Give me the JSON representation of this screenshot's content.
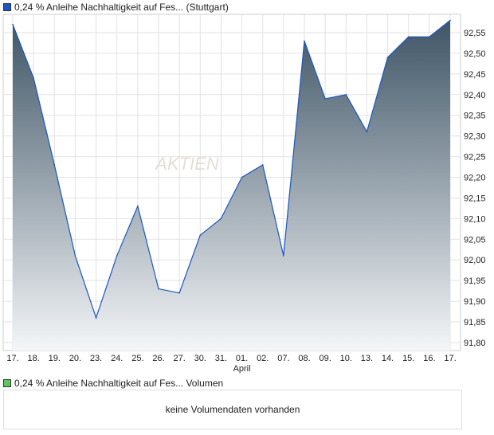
{
  "legend_main": "0,24 % Anleihe Nachhaltigkeit auf Fes... (Stuttgart)",
  "legend_volume": "0,24 % Anleihe Nachhaltigkeit auf Fes... Volumen",
  "volume_message": "keine Volumendaten vorhanden",
  "watermark": "AKTIEN CHECK",
  "colors": {
    "line": "#1a56c4",
    "fill_top": "#3f5566",
    "fill_bottom": "#f4f6f8",
    "main_swatch": "#1a56c4",
    "volume_swatch": "#5cc85c"
  },
  "chart_data": {
    "type": "area",
    "categories": [
      "17.",
      "18.",
      "19.",
      "20.",
      "23.",
      "24.",
      "25.",
      "26.",
      "27.",
      "30.",
      "31.",
      "01.",
      "02.",
      "07.",
      "08.",
      "09.",
      "10.",
      "13.",
      "14.",
      "15.",
      "16.",
      "17."
    ],
    "month_label": "April",
    "values": [
      92.57,
      92.44,
      92.23,
      92.01,
      91.86,
      92.01,
      92.13,
      91.93,
      91.92,
      92.06,
      92.1,
      92.2,
      92.23,
      92.01,
      92.53,
      92.39,
      92.4,
      92.31,
      92.49,
      92.54,
      92.54,
      92.58
    ],
    "yticks": [
      "92,55",
      "92,50",
      "92,45",
      "92,40",
      "92,35",
      "92,30",
      "92,25",
      "92,20",
      "92,15",
      "92,10",
      "92,05",
      "92,00",
      "91,95",
      "91,90",
      "91,85",
      "91,80"
    ],
    "ylim": [
      91.78,
      92.59
    ],
    "grid": true
  }
}
